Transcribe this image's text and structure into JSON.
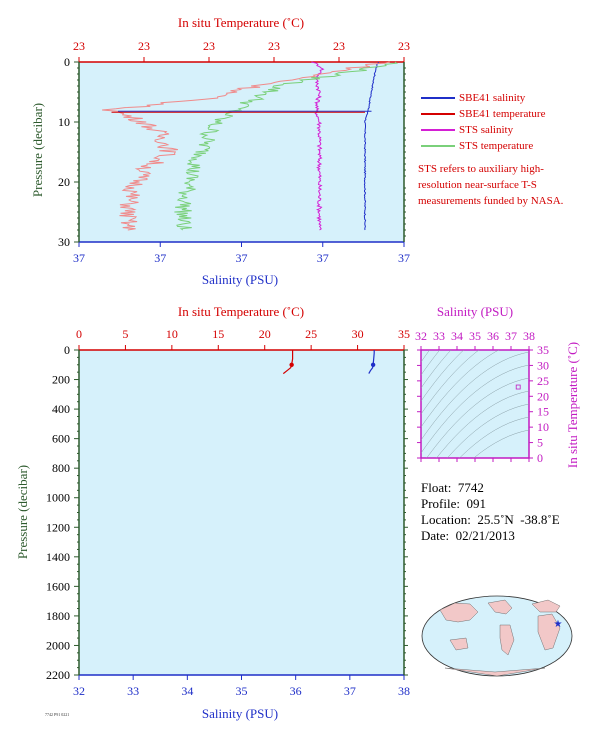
{
  "colors": {
    "plot_bg": "#d6f1fb",
    "temperature": "#d40000",
    "salinity": "#1f2fc8",
    "pressure_axis": "#2d5a2d",
    "sts_salinity": "#d41fd4",
    "sts_temperature": "#7ad07a",
    "sbe_temperature_light": "#f08a8a",
    "ts_axis": "#c21bc2"
  },
  "top_chart": {
    "title": "In situ Temperature (˚C)",
    "temp_ticks": [
      "23",
      "23",
      "23",
      "23",
      "23",
      "23"
    ],
    "sal_ticks": [
      "37",
      "37",
      "37",
      "37",
      "37"
    ],
    "pressure_ticks": [
      "0",
      "10",
      "20",
      "30"
    ],
    "xlabel": "Salinity (PSU)",
    "ylabel": "Pressure (decibar)"
  },
  "legend": [
    {
      "label": "SBE41 salinity",
      "color": "#1f2fc8"
    },
    {
      "label": "SBE41 temperature",
      "color": "#d40000"
    },
    {
      "label": "STS salinity",
      "color": "#d41fd4"
    },
    {
      "label": "STS temperature",
      "color": "#7ad07a"
    }
  ],
  "note": "STS refers to auxiliary high-resolution near-surface T-S measurements funded by NASA.",
  "bottom_chart": {
    "title": "In situ Temperature (˚C)",
    "temp_ticks": [
      "0",
      "5",
      "10",
      "15",
      "20",
      "25",
      "30",
      "35"
    ],
    "sal_ticks": [
      "32",
      "33",
      "34",
      "35",
      "36",
      "37",
      "38"
    ],
    "pressure_ticks": [
      "0",
      "200",
      "400",
      "600",
      "800",
      "1000",
      "1200",
      "1400",
      "1600",
      "1800",
      "2000",
      "2200"
    ],
    "xlabel": "Salinity (PSU)",
    "ylabel": "Pressure (decibar)"
  },
  "ts_diagram": {
    "title": "Salinity (PSU)",
    "sal_ticks": [
      "32",
      "33",
      "34",
      "35",
      "36",
      "37",
      "38"
    ],
    "temp_ticks": [
      "0",
      "5",
      "10",
      "15",
      "20",
      "25",
      "30",
      "35"
    ],
    "ylabel": "In situ Temperature (˚C)"
  },
  "info": {
    "float": "Float:  7742",
    "profile": "Profile:  091",
    "location": "Location:  25.5˚N  -38.8˚E",
    "date": "Date:  02/21/2013"
  },
  "footer": "7742 P91 0221",
  "chart_data": [
    {
      "type": "line",
      "title": "In situ Temperature (˚C)",
      "xlabel": "Salinity (PSU)",
      "ylabel": "Pressure (decibar)",
      "ylim": [
        30,
        0
      ],
      "series": [
        {
          "name": "SBE41 salinity",
          "pressure": [
            0,
            2,
            5,
            8,
            10,
            15,
            20,
            25,
            28
          ],
          "x_norm": [
            0.92,
            0.91,
            0.9,
            0.89,
            0.88,
            0.88,
            0.88,
            0.88,
            0.88
          ]
        },
        {
          "name": "STS salinity",
          "pressure": [
            0,
            1,
            3,
            5,
            8,
            10,
            15,
            20,
            25,
            28
          ],
          "x_norm": [
            0.72,
            0.75,
            0.73,
            0.74,
            0.73,
            0.74,
            0.74,
            0.74,
            0.74,
            0.74
          ]
        },
        {
          "name": "STS temperature",
          "pressure": [
            0,
            1,
            2,
            3,
            4,
            6,
            8,
            10,
            12,
            15,
            18,
            20,
            22,
            25,
            28
          ],
          "x_norm": [
            0.98,
            0.9,
            0.8,
            0.7,
            0.62,
            0.55,
            0.48,
            0.42,
            0.4,
            0.38,
            0.35,
            0.34,
            0.33,
            0.32,
            0.32
          ]
        },
        {
          "name": "SBE41 temperature",
          "pressure": [
            0,
            2,
            4,
            6,
            8,
            10,
            12,
            15,
            18,
            20,
            22,
            25,
            28
          ],
          "x_norm": [
            0.95,
            0.75,
            0.55,
            0.4,
            0.1,
            0.2,
            0.25,
            0.28,
            0.2,
            0.18,
            0.16,
            0.15,
            0.15
          ]
        }
      ]
    },
    {
      "type": "line",
      "title": "In situ Temperature (˚C)",
      "xlabel": "Salinity (PSU)",
      "ylabel": "Pressure (decibar)",
      "ylim": [
        2200,
        0
      ],
      "temp_range": [
        0,
        35
      ],
      "sal_range": [
        32,
        38
      ],
      "series": [
        {
          "name": "SBE41 temperature",
          "pressure": [
            0,
            20,
            60,
            100,
            120,
            140,
            160
          ],
          "temperature": [
            23.0,
            23.0,
            23.0,
            22.9,
            22.8,
            22.4,
            22.0
          ]
        },
        {
          "name": "SBE41 salinity",
          "pressure": [
            0,
            20,
            60,
            100,
            120,
            140,
            160
          ],
          "salinity": [
            37.45,
            37.45,
            37.44,
            37.43,
            37.42,
            37.38,
            37.35
          ]
        }
      ]
    },
    {
      "type": "scatter",
      "title": "Salinity (PSU)",
      "xlim": [
        32,
        38
      ],
      "ylim": [
        0,
        35
      ],
      "points": [
        {
          "x": 37.4,
          "y": 23.0
        }
      ]
    }
  ]
}
